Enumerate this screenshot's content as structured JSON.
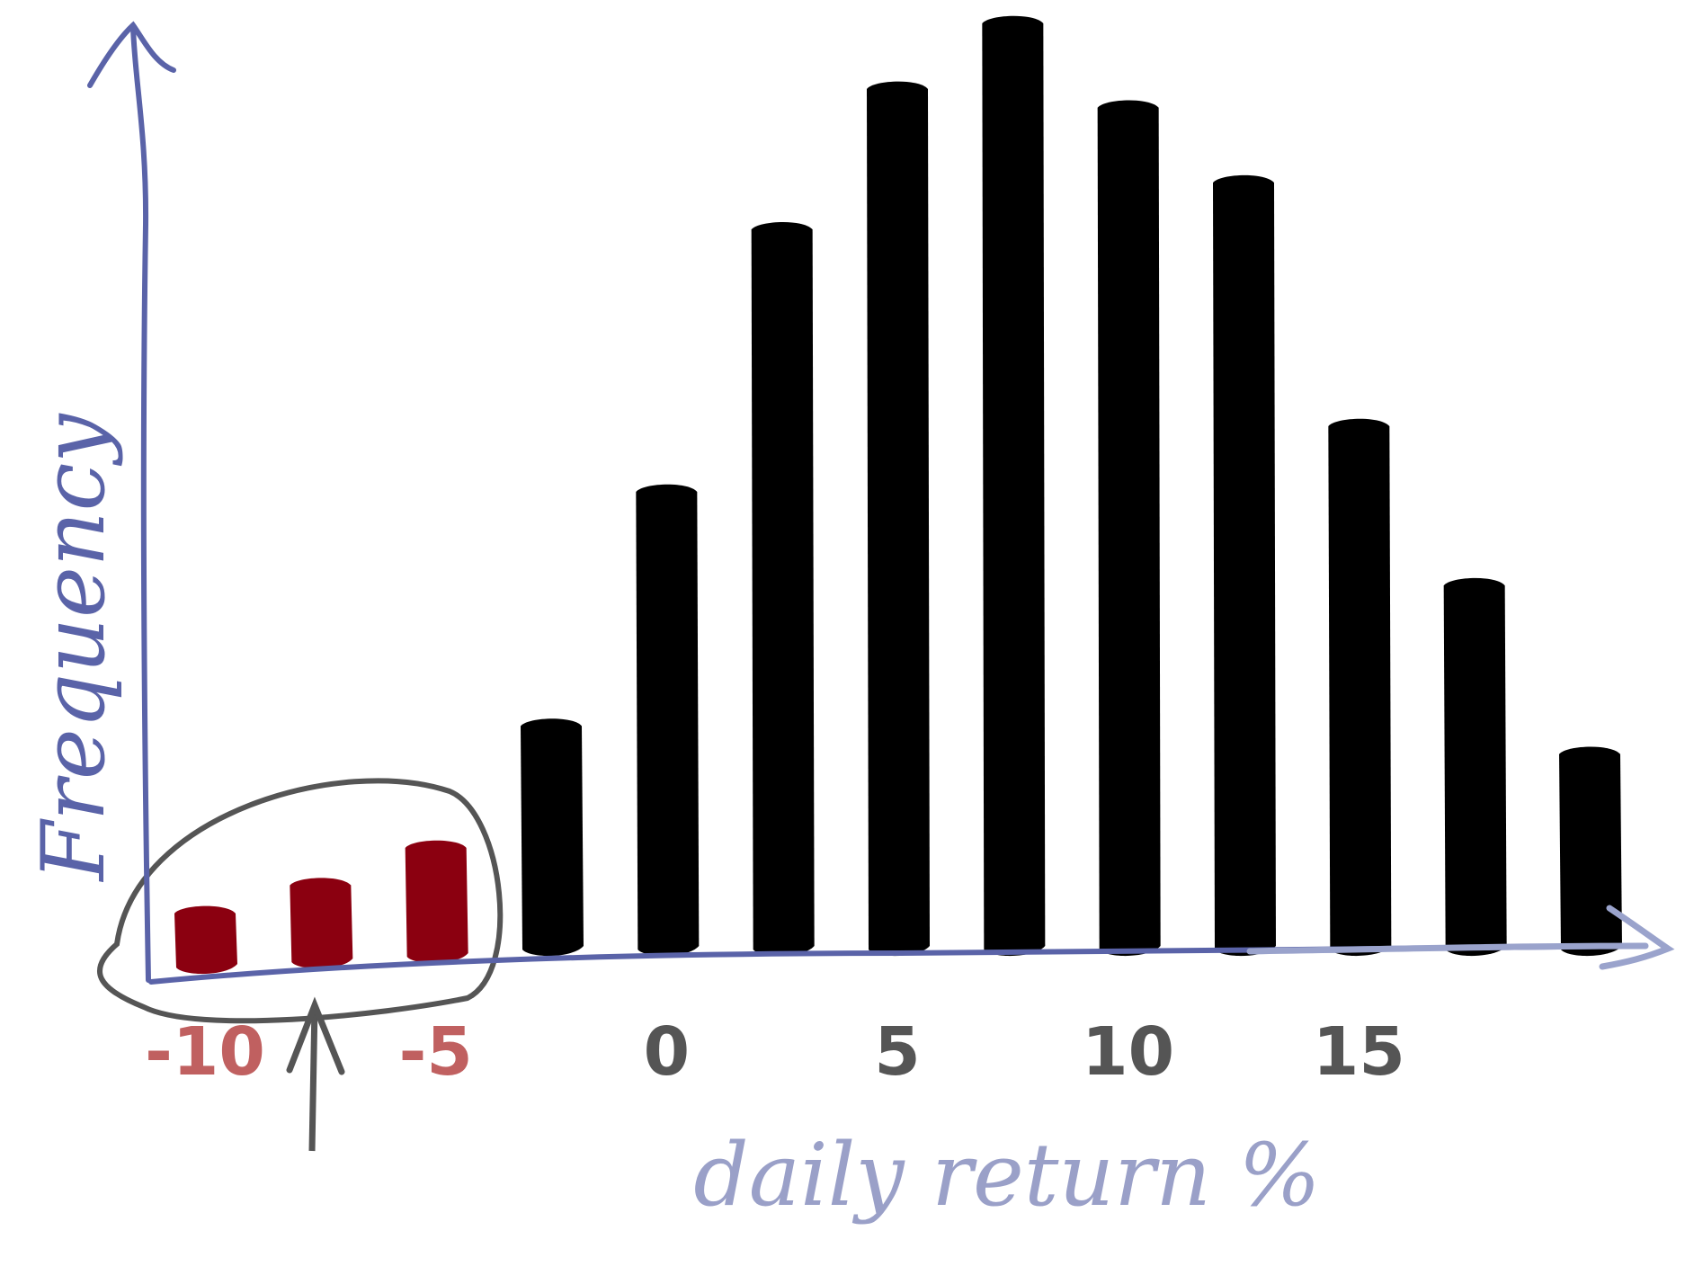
{
  "chart_data": {
    "type": "bar",
    "title": "",
    "xlabel": "daily return %",
    "ylabel": "Frequency",
    "x_ticks": [
      -10,
      -5,
      0,
      5,
      10,
      15
    ],
    "x_tick_labels": [
      "-10",
      "-5",
      "0",
      "5",
      "10",
      "15"
    ],
    "xlim": [
      -12,
      18
    ],
    "ylim": [
      0,
      100
    ],
    "bins": [
      {
        "x": -10,
        "value": 5,
        "highlight": true
      },
      {
        "x": -7.5,
        "value": 8,
        "highlight": true
      },
      {
        "x": -5,
        "value": 12,
        "highlight": true
      },
      {
        "x": -2.5,
        "value": 25,
        "highlight": false
      },
      {
        "x": 0,
        "value": 50,
        "highlight": false
      },
      {
        "x": 2.5,
        "value": 78,
        "highlight": false
      },
      {
        "x": 5,
        "value": 93,
        "highlight": false
      },
      {
        "x": 7.5,
        "value": 100,
        "highlight": false
      },
      {
        "x": 10,
        "value": 91,
        "highlight": false
      },
      {
        "x": 12.5,
        "value": 83,
        "highlight": false
      },
      {
        "x": 15,
        "value": 57,
        "highlight": false
      },
      {
        "x": 17.5,
        "value": 40,
        "highlight": false
      },
      {
        "x": 20,
        "value": 22,
        "highlight": false
      }
    ],
    "annotations": [
      "highlighted left tail circled with arrow pointing up"
    ],
    "colors": {
      "bar": "#000000",
      "highlight_bar": "#8b0010",
      "axis": "#5a63a8",
      "x_axis_right": "#9aa3cc",
      "tick_neg": "#c06060",
      "tick_pos": "#555555",
      "xlabel": "#9aa0c8",
      "ylabel": "#5a63a8",
      "circle": "#555555"
    }
  }
}
